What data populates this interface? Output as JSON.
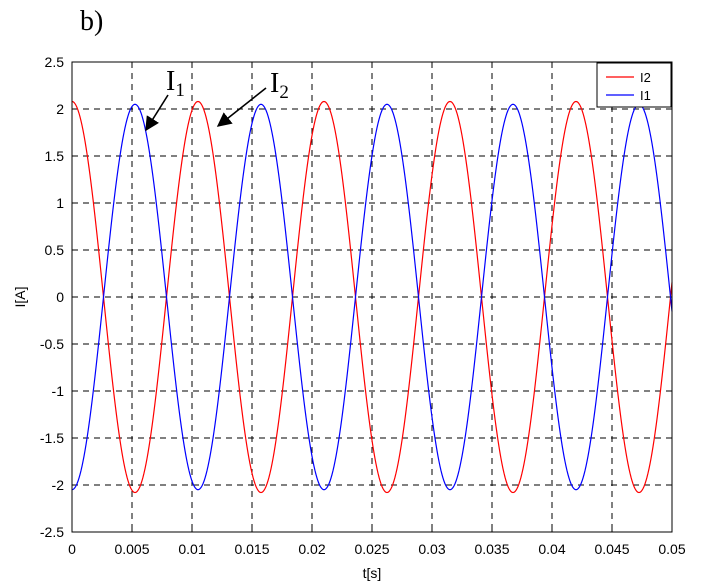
{
  "chart_data": {
    "type": "line",
    "panel_label": "b)",
    "xlabel": "t[s]",
    "ylabel": "I[A]",
    "xlim": [
      0,
      0.05
    ],
    "ylim": [
      -2.5,
      2.5
    ],
    "x_ticks": [
      "0",
      "0.005",
      "0.01",
      "0.015",
      "0.02",
      "0.025",
      "0.03",
      "0.035",
      "0.04",
      "0.045",
      "0.05"
    ],
    "y_ticks": [
      "2.5",
      "2",
      "1.5",
      "1",
      "0.5",
      "0",
      "-0.5",
      "-1",
      "-1.5",
      "-2",
      "-2.5"
    ],
    "grid": true,
    "legend_position": "top-right",
    "series": [
      {
        "name": "I2",
        "color": "#ff0000",
        "function": "sine",
        "amplitude": 2.08,
        "period_s": 0.0105,
        "phase_peak_at_s": 0.0
      },
      {
        "name": "I1",
        "color": "#0000ff",
        "function": "sine",
        "amplitude": 2.05,
        "period_s": 0.0105,
        "phase_peak_at_s": 0.00525
      }
    ],
    "annotations": [
      {
        "base": "I",
        "subscript": "1",
        "series": "I1"
      },
      {
        "base": "I",
        "subscript": "2",
        "series": "I2"
      }
    ]
  }
}
